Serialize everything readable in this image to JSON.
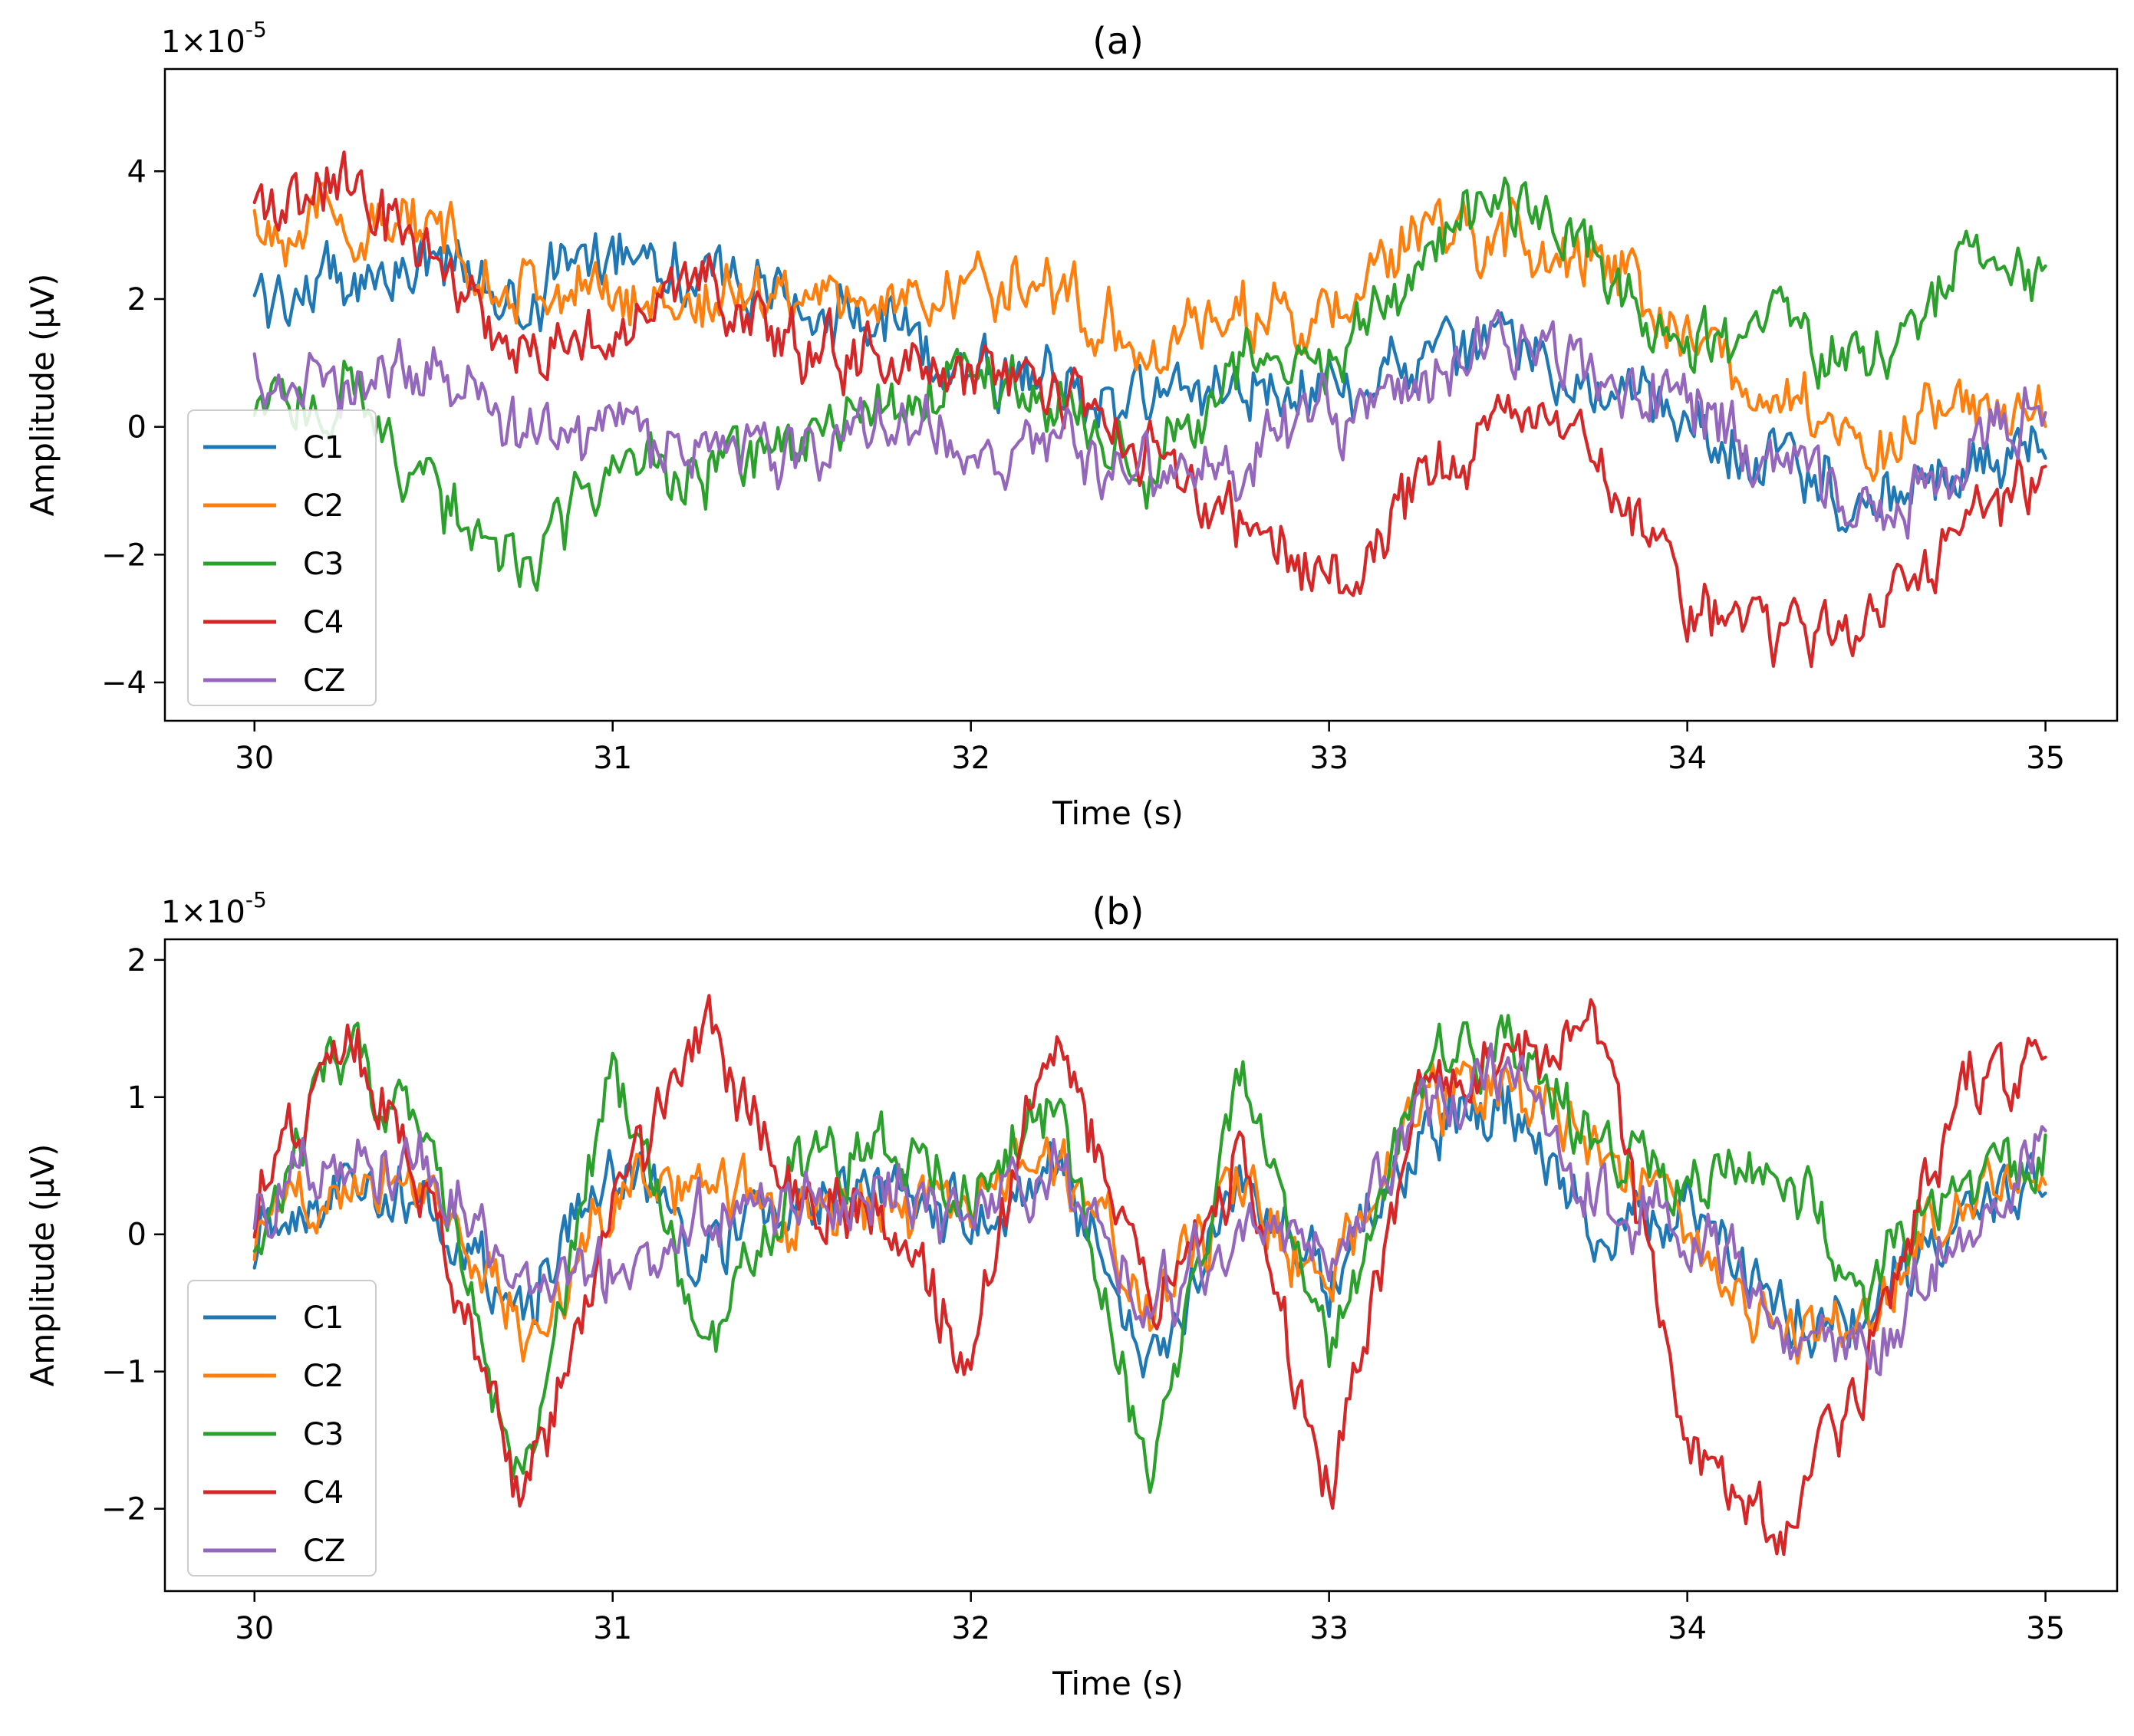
{
  "chart_data": [
    {
      "type": "line",
      "title": "(a)",
      "xlabel": "Time (s)",
      "ylabel": "Amplitude (µV)",
      "offset_text": "1×10",
      "offset_exponent": "-5",
      "xlim": [
        29.75,
        35.2
      ],
      "ylim": [
        -4.6,
        5.6
      ],
      "xticks": [
        30,
        31,
        32,
        33,
        34,
        35
      ],
      "xtick_labels": [
        "30",
        "31",
        "32",
        "33",
        "34",
        "35"
      ],
      "yticks": [
        -4,
        -2,
        0,
        2,
        4
      ],
      "ytick_labels": [
        "−4",
        "−2",
        "0",
        "2",
        "4"
      ],
      "legend_position": "lower-left",
      "series": [
        {
          "name": "C1",
          "color": "#1f77b4",
          "x": [
            30,
            30.25,
            30.5,
            30.75,
            31,
            31.25,
            31.5,
            31.75,
            32,
            32.25,
            32.5,
            32.75,
            33,
            33.25,
            33.5,
            33.75,
            34,
            34.25,
            34.5,
            34.75,
            35
          ],
          "y": [
            2.0,
            2.3,
            2.6,
            1.9,
            3.0,
            2.4,
            2.0,
            1.5,
            1.0,
            0.6,
            0.4,
            0.7,
            0.6,
            0.9,
            1.4,
            0.6,
            0.0,
            -0.5,
            -1.3,
            -0.8,
            -0.2
          ]
        },
        {
          "name": "C2",
          "color": "#ff7f0e",
          "x": [
            30,
            30.25,
            30.5,
            30.75,
            31,
            31.25,
            31.5,
            31.75,
            32,
            32.25,
            32.5,
            32.75,
            33,
            33.25,
            33.5,
            33.75,
            34,
            34.25,
            34.5,
            34.75,
            35
          ],
          "y": [
            3.2,
            3.2,
            3.0,
            2.2,
            2.0,
            2.0,
            2.2,
            1.9,
            2.2,
            2.2,
            1.2,
            1.8,
            1.6,
            3.0,
            3.0,
            2.6,
            1.5,
            0.3,
            -0.3,
            0.3,
            0.1
          ]
        },
        {
          "name": "C3",
          "color": "#2ca02c",
          "x": [
            30,
            30.25,
            30.5,
            30.75,
            31,
            31.25,
            31.5,
            31.75,
            32,
            32.25,
            32.5,
            32.75,
            33,
            33.25,
            33.5,
            33.75,
            34,
            34.25,
            34.5,
            34.75,
            35
          ],
          "y": [
            0.2,
            0.6,
            -1.0,
            -2.3,
            -0.6,
            -0.8,
            -0.4,
            0.2,
            0.9,
            0.4,
            -0.8,
            1.2,
            0.9,
            2.7,
            3.6,
            2.6,
            1.3,
            1.6,
            1.0,
            2.6,
            2.2
          ]
        },
        {
          "name": "C4",
          "color": "#d62728",
          "x": [
            30,
            30.25,
            30.5,
            30.75,
            31,
            31.25,
            31.5,
            31.75,
            32,
            32.25,
            32.5,
            32.75,
            33,
            33.25,
            33.5,
            33.75,
            34,
            34.25,
            34.5,
            34.75,
            35
          ],
          "y": [
            3.4,
            3.8,
            2.6,
            1.2,
            1.5,
            2.5,
            1.2,
            1.0,
            0.9,
            0.5,
            -0.5,
            -1.4,
            -2.6,
            -0.8,
            0.2,
            -0.5,
            -2.8,
            -3.2,
            -3.0,
            -1.6,
            -0.8
          ]
        },
        {
          "name": "CZ",
          "color": "#9467bd",
          "x": [
            30,
            30.25,
            30.5,
            30.75,
            31,
            31.25,
            31.5,
            31.75,
            32,
            32.25,
            32.5,
            32.75,
            33,
            33.25,
            33.5,
            33.75,
            34,
            34.25,
            34.5,
            34.75,
            35
          ],
          "y": [
            0.9,
            0.7,
            0.9,
            -0.1,
            0.0,
            -0.5,
            -0.3,
            0.1,
            -0.5,
            -0.4,
            -0.8,
            -0.4,
            0.2,
            0.6,
            1.4,
            1.0,
            0.2,
            -0.5,
            -1.3,
            -0.6,
            0.5
          ]
        }
      ]
    },
    {
      "type": "line",
      "title": "(b)",
      "xlabel": "Time (s)",
      "ylabel": "Amplitude (µV)",
      "offset_text": "1×10",
      "offset_exponent": "-5",
      "xlim": [
        29.75,
        35.2
      ],
      "ylim": [
        -2.6,
        2.15
      ],
      "xticks": [
        30,
        31,
        32,
        33,
        34,
        35
      ],
      "xtick_labels": [
        "30",
        "31",
        "32",
        "33",
        "34",
        "35"
      ],
      "yticks": [
        -2,
        -1,
        0,
        1,
        2
      ],
      "ytick_labels": [
        "−2",
        "−1",
        "0",
        "1",
        "2"
      ],
      "legend_position": "lower-left",
      "series": [
        {
          "name": "C1",
          "color": "#1f77b4",
          "x": [
            30,
            30.25,
            30.5,
            30.75,
            31,
            31.25,
            31.5,
            31.75,
            32,
            32.25,
            32.5,
            32.75,
            33,
            33.25,
            33.5,
            33.75,
            34,
            34.25,
            34.5,
            34.75,
            35
          ],
          "y": [
            0.0,
            0.4,
            0.2,
            -0.6,
            0.5,
            -0.1,
            0.2,
            0.3,
            0.1,
            0.4,
            -1.0,
            0.3,
            -0.3,
            0.7,
            1.0,
            -0.1,
            0.2,
            -0.5,
            -0.7,
            0.0,
            0.5
          ]
        },
        {
          "name": "C2",
          "color": "#ff7f0e",
          "x": [
            30,
            30.25,
            30.5,
            30.75,
            31,
            31.25,
            31.5,
            31.75,
            32,
            32.25,
            32.5,
            32.75,
            33,
            33.25,
            33.5,
            33.75,
            34,
            34.25,
            34.5,
            34.75,
            35
          ],
          "y": [
            0.0,
            0.5,
            0.4,
            -0.8,
            0.3,
            0.4,
            0.1,
            0.2,
            0.2,
            0.6,
            -0.6,
            0.4,
            -0.4,
            0.9,
            1.1,
            0.6,
            0.1,
            -0.8,
            -0.6,
            0.3,
            0.6
          ]
        },
        {
          "name": "C3",
          "color": "#2ca02c",
          "x": [
            30,
            30.25,
            30.5,
            30.75,
            31,
            31.25,
            31.5,
            31.75,
            32,
            32.25,
            32.5,
            32.75,
            33,
            33.25,
            33.5,
            33.75,
            34,
            34.25,
            34.5,
            34.75,
            35
          ],
          "y": [
            0.0,
            1.4,
            0.6,
            -2.0,
            1.3,
            -0.8,
            0.4,
            0.6,
            0.3,
            1.0,
            -1.9,
            1.1,
            -0.9,
            1.1,
            1.5,
            0.7,
            0.3,
            0.6,
            -0.4,
            0.4,
            0.5
          ]
        },
        {
          "name": "C4",
          "color": "#d62728",
          "x": [
            30,
            30.25,
            30.5,
            30.75,
            31,
            31.25,
            31.5,
            31.75,
            32,
            32.25,
            32.5,
            32.75,
            33,
            33.25,
            33.5,
            33.75,
            34,
            34.25,
            34.5,
            34.75,
            35
          ],
          "y": [
            0.2,
            1.5,
            0.2,
            -2.0,
            0.1,
            1.5,
            0.3,
            0.2,
            -0.9,
            1.6,
            -0.6,
            0.6,
            -2.0,
            1.0,
            1.3,
            1.6,
            -1.5,
            -2.3,
            -1.0,
            1.1,
            1.2
          ]
        },
        {
          "name": "CZ",
          "color": "#9467bd",
          "x": [
            30,
            30.25,
            30.5,
            30.75,
            31,
            31.25,
            31.5,
            31.75,
            32,
            32.25,
            32.5,
            32.75,
            33,
            33.25,
            33.5,
            33.75,
            34,
            34.25,
            34.5,
            34.75,
            35
          ],
          "y": [
            0.2,
            0.6,
            0.5,
            -0.4,
            -0.3,
            0.1,
            0.2,
            0.3,
            0.2,
            0.4,
            -0.5,
            -0.1,
            -0.2,
            0.8,
            1.2,
            0.3,
            0.1,
            -0.6,
            -1.0,
            0.0,
            0.7
          ]
        }
      ]
    }
  ]
}
